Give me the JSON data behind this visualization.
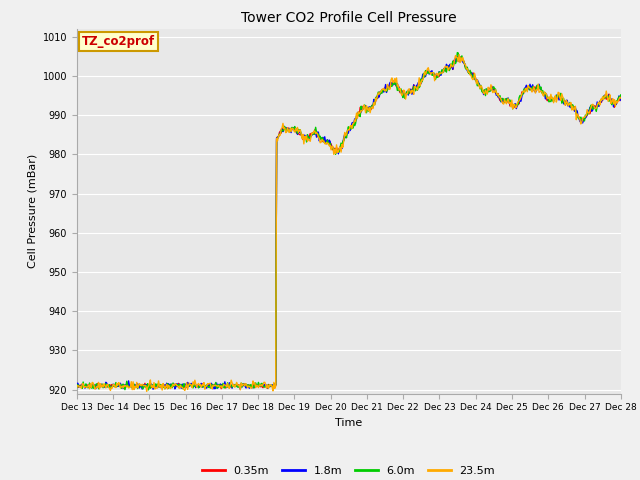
{
  "title": "Tower CO2 Profile Cell Pressure",
  "ylabel": "Cell Pressure (mBar)",
  "xlabel": "Time",
  "annotation_text": "TZ_co2prof",
  "annotation_color": "#cc0000",
  "annotation_bg": "#ffffcc",
  "annotation_border": "#cc9900",
  "ylim": [
    919,
    1012
  ],
  "yticks": [
    920,
    930,
    940,
    950,
    960,
    970,
    980,
    990,
    1000,
    1010
  ],
  "xtick_labels": [
    "Dec 13",
    "Dec 14",
    "Dec 15",
    "Dec 16",
    "Dec 17",
    "Dec 18",
    "Dec 19",
    "Dec 20",
    "Dec 21",
    "Dec 22",
    "Dec 23",
    "Dec 24",
    "Dec 25",
    "Dec 26",
    "Dec 27",
    "Dec 28"
  ],
  "legend_labels": [
    "0.35m",
    "1.8m",
    "6.0m",
    "23.5m"
  ],
  "legend_colors": [
    "#ff0000",
    "#0000ff",
    "#00cc00",
    "#ffaa00"
  ],
  "fig_bg_color": "#f0f0f0",
  "plot_bg_color": "#e8e8e8",
  "grid_color": "#ffffff",
  "line_width": 1.0,
  "title_fontsize": 10,
  "tick_fontsize": 7,
  "label_fontsize": 8,
  "legend_fontsize": 8
}
